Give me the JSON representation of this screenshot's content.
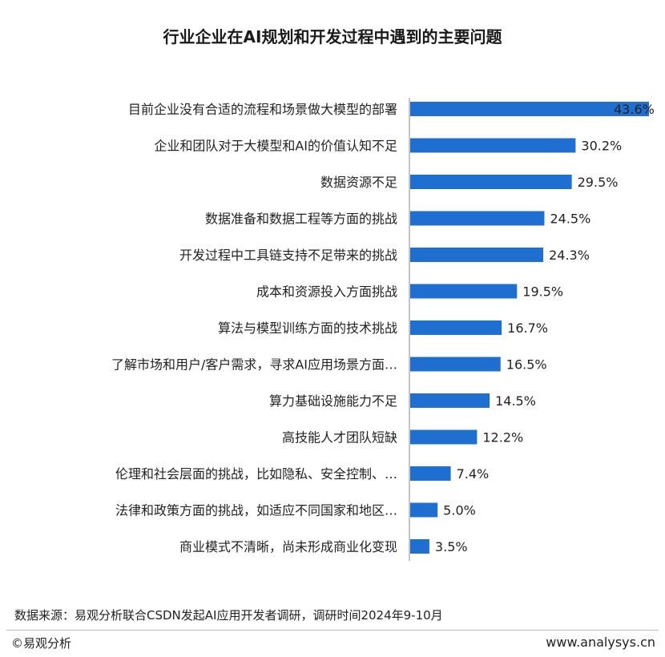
{
  "chart_data": {
    "type": "bar",
    "orientation": "horizontal",
    "title": "行业企业在AI规划和开发过程中遇到的主要问题",
    "categories": [
      "目前企业没有合适的流程和场景做大模型的部署",
      "企业和团队对于大模型和AI的价值认知不足",
      "数据资源不足",
      "数据准备和数据工程等方面的挑战",
      "开发过程中工具链支持不足带来的挑战",
      "成本和资源投入方面挑战",
      "算法与模型训练方面的技术挑战",
      "了解市场和用户/客户需求，寻求AI应用场景方面…",
      "算力基础设施能力不足",
      "高技能人才团队短缺",
      "伦理和社会层面的挑战，比如隐私、安全控制、…",
      "法律和政策方面的挑战，如适应不同国家和地区…",
      "商业模式不清晰，尚未形成商业化变现"
    ],
    "values": [
      43.6,
      30.2,
      29.5,
      24.5,
      24.3,
      19.5,
      16.7,
      16.5,
      14.5,
      12.2,
      7.4,
      5.0,
      3.5
    ],
    "value_labels": [
      "43.6%",
      "30.2%",
      "29.5%",
      "24.5%",
      "24.3%",
      "19.5%",
      "16.7%",
      "16.5%",
      "14.5%",
      "12.2%",
      "7.4%",
      "5.0%",
      "3.5%"
    ],
    "unit": "%",
    "bar_color": "#1f6fd1",
    "legend": "none",
    "grid": false
  },
  "footer": {
    "source": "数据来源：易观分析联合CSDN发起AI应用开发者调研，调研时间2024年9-10月",
    "copyright": "©易观分析",
    "website": "www.analysys.cn"
  }
}
